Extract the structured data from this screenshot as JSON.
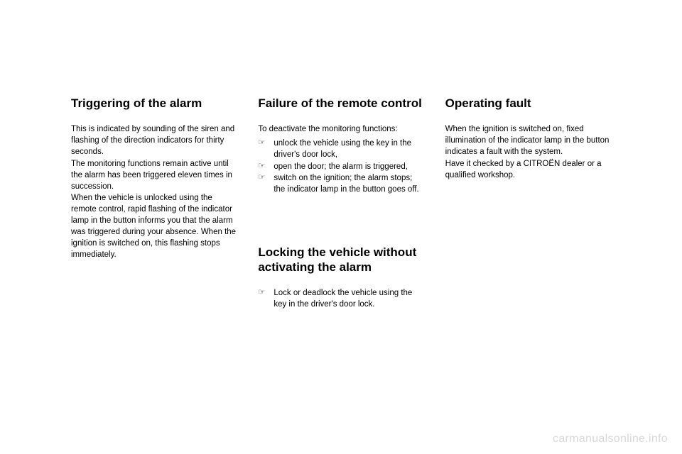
{
  "col1": {
    "section1": {
      "heading": "Triggering of the alarm",
      "body": "This is indicated by sounding of the siren and flashing of the direction indicators for thirty seconds.\nThe monitoring functions remain active until the alarm has been triggered eleven times in succession.\nWhen the vehicle is unlocked using the remote control, rapid flashing of the indicator lamp in the button informs you that the alarm was triggered during your absence. When the ignition is switched on, this flashing stops immediately."
    }
  },
  "col2": {
    "section1": {
      "heading": "Failure of the remote control",
      "intro": "To deactivate the monitoring functions:",
      "bullets": [
        "unlock the vehicle using the key in the driver's door lock,",
        "open the door; the alarm is triggered,",
        "switch on the ignition; the alarm stops; the indicator lamp in the button goes off."
      ]
    },
    "section2": {
      "heading": "Locking the vehicle without activating the alarm",
      "bullets": [
        "Lock or deadlock the vehicle using the key in the driver's door lock."
      ]
    }
  },
  "col3": {
    "section1": {
      "heading": "Operating fault",
      "body": "When the ignition is switched on, fixed illumination of the indicator lamp in the button indicates a fault with the system.\nHave it checked by a CITROËN dealer or a qualified workshop."
    }
  },
  "watermark": "carmanualsonline.info",
  "bullet_glyph": "☞"
}
